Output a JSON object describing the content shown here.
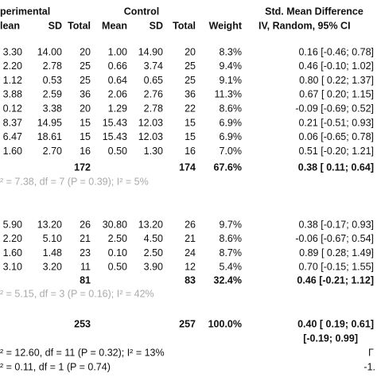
{
  "header": {
    "experimental": "perimental",
    "control": "Control",
    "effect": "Std. Mean Difference",
    "columns": [
      "lean",
      "SD",
      "Total",
      "Mean",
      "SD",
      "Total",
      "Weight",
      "IV, Random, 95% CI"
    ]
  },
  "groups": [
    {
      "rows": [
        [
          "3.30",
          "14.00",
          "20",
          "1.00",
          "14.90",
          "20",
          "8.3%",
          "0.16 [-0.46; 0.78]"
        ],
        [
          "2.20",
          "2.78",
          "25",
          "0.66",
          "3.74",
          "25",
          "9.4%",
          "0.46 [-0.10; 1.02]"
        ],
        [
          "1.12",
          "0.53",
          "25",
          "0.64",
          "0.65",
          "25",
          "9.1%",
          "0.80 [ 0.22; 1.37]"
        ],
        [
          "3.88",
          "2.59",
          "36",
          "2.06",
          "2.76",
          "36",
          "11.3%",
          "0.67 [ 0.20; 1.15]"
        ],
        [
          "0.12",
          "3.38",
          "20",
          "1.29",
          "2.78",
          "22",
          "8.6%",
          "-0.09 [-0.69; 0.52]"
        ],
        [
          "8.37",
          "14.95",
          "15",
          "15.43",
          "12.03",
          "15",
          "6.9%",
          "0.21 [-0.51; 0.93]"
        ],
        [
          "6.47",
          "18.61",
          "15",
          "15.43",
          "12.03",
          "15",
          "6.9%",
          "0.06 [-0.65; 0.78]"
        ],
        [
          "1.60",
          "2.70",
          "16",
          "0.50",
          "1.30",
          "16",
          "7.0%",
          "0.51 [-0.20; 1.21]"
        ]
      ],
      "subtotal": [
        "172",
        "174",
        "67.6%",
        "0.38 [ 0.11; 0.64]"
      ],
      "heterogeneity": "² = 7.38, df = 7 (P = 0.39); I² = 5%"
    },
    {
      "rows": [
        [
          "5.90",
          "13.20",
          "26",
          "30.80",
          "13.20",
          "26",
          "9.7%",
          "0.38 [-0.17; 0.93]"
        ],
        [
          "2.20",
          "5.10",
          "21",
          "2.50",
          "4.50",
          "21",
          "8.6%",
          "-0.06 [-0.67; 0.54]"
        ],
        [
          "1.60",
          "1.48",
          "23",
          "0.10",
          "2.50",
          "24",
          "8.7%",
          "0.89 [ 0.28; 1.49]"
        ],
        [
          "3.10",
          "3.20",
          "11",
          "0.50",
          "3.90",
          "12",
          "5.4%",
          "0.70 [-0.15; 1.55]"
        ]
      ],
      "subtotal": [
        "81",
        "83",
        "32.4%",
        "0.46 [-0.21; 1.12]"
      ],
      "heterogeneity": "² = 5.15, df = 3 (P = 0.16); I² = 42%"
    }
  ],
  "total": [
    "253",
    "257",
    "100.0%",
    "0.40 [ 0.19; 0.61]"
  ],
  "prediction_interval": "[-0.19; 0.99]",
  "heterogeneity_total": "² = 12.60, df = 11 (P = 0.32); I² = 13%",
  "subgroup_test": "² = 0.11, df = 1 (P = 0.74)",
  "axis_label": "-1."
}
